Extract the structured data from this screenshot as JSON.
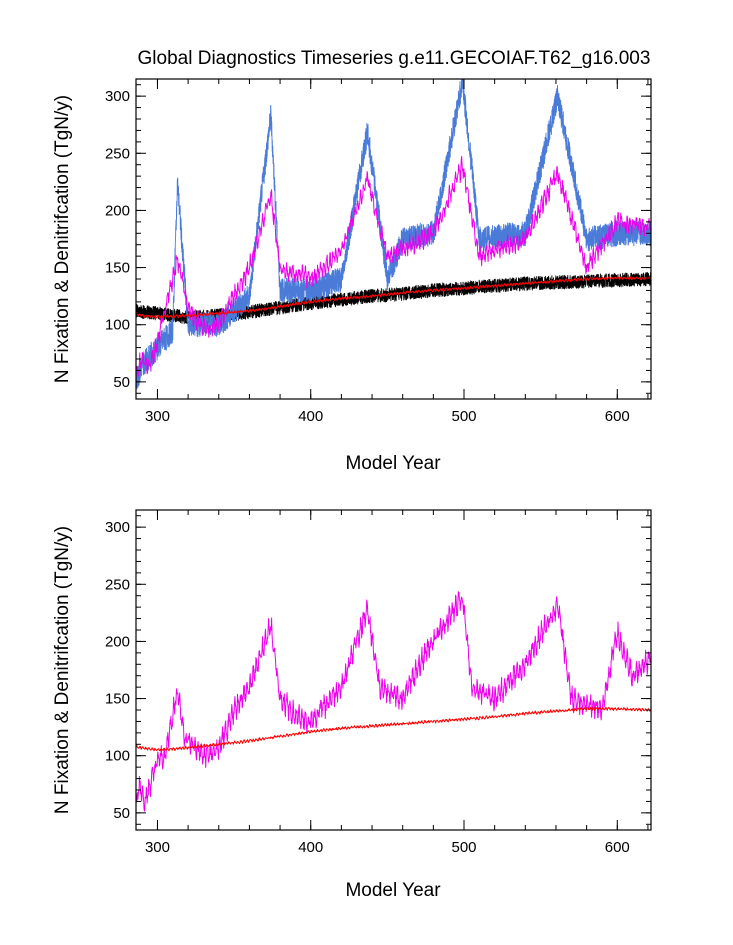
{
  "page_title": "Global Diagnostics Timeseries g.e11.GECOIAF.T62_g16.003",
  "colors": {
    "blue_series": "#4a7bd8",
    "magenta_series": "#ee00ee",
    "black_series": "#000000",
    "red_series": "#ff0000"
  },
  "chart_data": [
    {
      "type": "line",
      "title": "Global Diagnostics Timeseries g.e11.GECOIAF.T62_g16.003",
      "xlabel": "Model Year",
      "ylabel": "N Fixation & Denitrifcation (TgN/y)",
      "xlim": [
        286,
        622
      ],
      "ylim": [
        35,
        315
      ],
      "xticks": [
        300,
        400,
        500,
        600
      ],
      "yticks": [
        50,
        100,
        150,
        200,
        250,
        300
      ],
      "grid": false,
      "series": [
        {
          "color": "black",
          "style": "monthly",
          "points": [
            [
              286,
              112
            ],
            [
              300,
              110
            ],
            [
              320,
              106
            ],
            [
              340,
              108
            ],
            [
              360,
              111
            ],
            [
              380,
              115
            ],
            [
              400,
              119
            ],
            [
              420,
              122
            ],
            [
              440,
              125
            ],
            [
              460,
              127
            ],
            [
              480,
              130
            ],
            [
              500,
              132
            ],
            [
              520,
              134
            ],
            [
              540,
              136
            ],
            [
              560,
              137
            ],
            [
              580,
              138
            ],
            [
              600,
              139
            ],
            [
              622,
              140
            ]
          ],
          "noise": 12
        },
        {
          "color": "blue",
          "style": "monthly",
          "points": [
            [
              286,
              50
            ],
            [
              290,
              65
            ],
            [
              300,
              80
            ],
            [
              310,
              95
            ],
            [
              313,
              225
            ],
            [
              320,
              100
            ],
            [
              340,
              100
            ],
            [
              360,
              125
            ],
            [
              374,
              283
            ],
            [
              380,
              130
            ],
            [
              400,
              130
            ],
            [
              420,
              140
            ],
            [
              437,
              269
            ],
            [
              450,
              140
            ],
            [
              460,
              175
            ],
            [
              480,
              180
            ],
            [
              499,
              313
            ],
            [
              510,
              175
            ],
            [
              540,
              180
            ],
            [
              561,
              300
            ],
            [
              580,
              175
            ],
            [
              600,
              180
            ],
            [
              622,
              180
            ]
          ],
          "noise": 22
        },
        {
          "color": "magenta",
          "style": "annual",
          "points": [
            [
              286,
              58
            ],
            [
              290,
              70
            ],
            [
              295,
              62
            ],
            [
              300,
              85
            ],
            [
              313,
              158
            ],
            [
              320,
              115
            ],
            [
              330,
              95
            ],
            [
              340,
              100
            ],
            [
              360,
              150
            ],
            [
              374,
              214
            ],
            [
              380,
              150
            ],
            [
              400,
              140
            ],
            [
              420,
              165
            ],
            [
              437,
              228
            ],
            [
              450,
              160
            ],
            [
              480,
              180
            ],
            [
              499,
              239
            ],
            [
              510,
              160
            ],
            [
              540,
              175
            ],
            [
              561,
              233
            ],
            [
              580,
              150
            ],
            [
              600,
              190
            ],
            [
              622,
              185
            ]
          ],
          "noise": 10
        },
        {
          "color": "red",
          "style": "annual",
          "points": [
            [
              286,
              110
            ],
            [
              290,
              108
            ],
            [
              300,
              107
            ],
            [
              320,
              108
            ],
            [
              340,
              110
            ],
            [
              360,
              112
            ],
            [
              380,
              116
            ],
            [
              400,
              120
            ],
            [
              420,
              123
            ],
            [
              440,
              125
            ],
            [
              460,
              128
            ],
            [
              480,
              130
            ],
            [
              500,
              132
            ],
            [
              520,
              134
            ],
            [
              540,
              136
            ],
            [
              560,
              138
            ],
            [
              580,
              140
            ],
            [
              600,
              141
            ],
            [
              622,
              140
            ]
          ],
          "noise": 1.5
        }
      ]
    },
    {
      "type": "line",
      "title": "",
      "xlabel": "Model Year",
      "ylabel": "N Fixation & Denitrifcation (TgN/y)",
      "xlim": [
        286,
        622
      ],
      "ylim": [
        35,
        315
      ],
      "xticks": [
        300,
        400,
        500,
        600
      ],
      "yticks": [
        50,
        100,
        150,
        200,
        250,
        300
      ],
      "grid": false,
      "series": [
        {
          "color": "magenta",
          "style": "annual",
          "points": [
            [
              286,
              52
            ],
            [
              288,
              75
            ],
            [
              292,
              60
            ],
            [
              300,
              95
            ],
            [
              305,
              100
            ],
            [
              313,
              158
            ],
            [
              318,
              115
            ],
            [
              330,
              100
            ],
            [
              340,
              105
            ],
            [
              350,
              140
            ],
            [
              360,
              160
            ],
            [
              374,
              214
            ],
            [
              380,
              150
            ],
            [
              390,
              135
            ],
            [
              400,
              130
            ],
            [
              420,
              160
            ],
            [
              437,
              228
            ],
            [
              445,
              160
            ],
            [
              460,
              150
            ],
            [
              475,
              190
            ],
            [
              499,
              239
            ],
            [
              505,
              160
            ],
            [
              520,
              150
            ],
            [
              540,
              180
            ],
            [
              561,
              233
            ],
            [
              570,
              150
            ],
            [
              590,
              140
            ],
            [
              600,
              208
            ],
            [
              610,
              170
            ],
            [
              622,
              185
            ]
          ],
          "noise": 12
        },
        {
          "color": "red",
          "style": "annual",
          "points": [
            [
              286,
              108
            ],
            [
              290,
              107
            ],
            [
              300,
              105
            ],
            [
              320,
              107
            ],
            [
              340,
              110
            ],
            [
              360,
              113
            ],
            [
              380,
              117
            ],
            [
              400,
              121
            ],
            [
              420,
              124
            ],
            [
              440,
              126
            ],
            [
              460,
              128
            ],
            [
              480,
              130
            ],
            [
              500,
              132
            ],
            [
              520,
              134
            ],
            [
              540,
              137
            ],
            [
              560,
              139
            ],
            [
              580,
              141
            ],
            [
              600,
              141
            ],
            [
              622,
              140
            ]
          ],
          "noise": 1.5
        }
      ]
    }
  ]
}
